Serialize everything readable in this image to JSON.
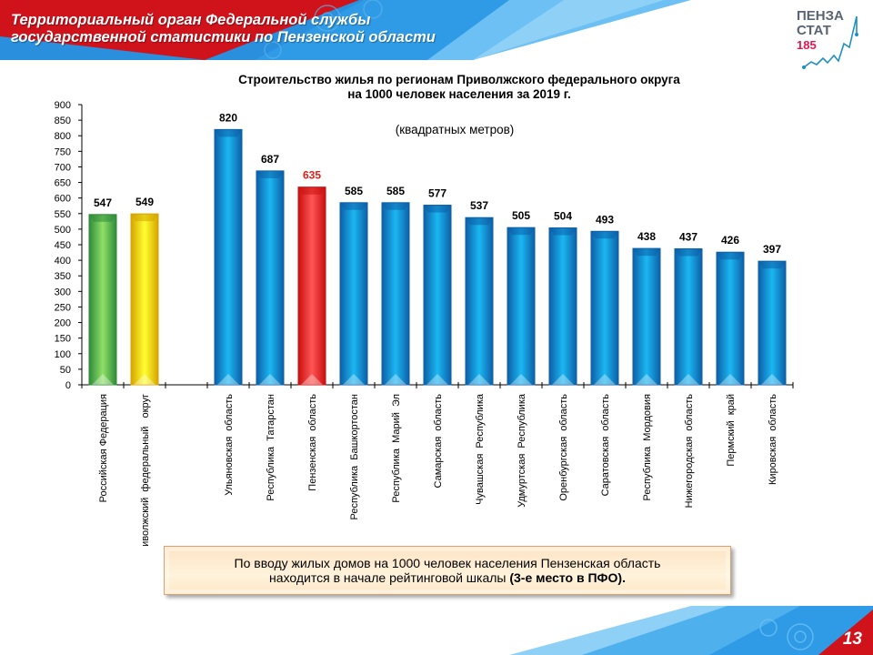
{
  "header": {
    "title_line1": "Территориальный орган Федеральной службы",
    "title_line2": "государственной  статистики по Пензенской области",
    "colors": {
      "red": "#d0121b",
      "blue": "#2f9be6",
      "light_blue": "#5bb5f0"
    }
  },
  "logo": {
    "line1": "ПЕНЗА",
    "line2": "СТАТ",
    "number": "185",
    "colors": {
      "text": "#5a6470",
      "number": "#e0174e",
      "line": "#1f8fbf"
    }
  },
  "chart_data": {
    "type": "bar",
    "title_line1": "Строительство жилья по регионам Приволжского федерального округа",
    "title_line2": "на 1000 человек населения за 2019 г.",
    "subtitle": "(квадратных метров)",
    "xlabel": "",
    "ylabel": "",
    "ylim": [
      0,
      900
    ],
    "yticks": [
      0,
      50,
      100,
      150,
      200,
      250,
      300,
      350,
      400,
      450,
      500,
      550,
      600,
      650,
      700,
      750,
      800,
      850,
      900
    ],
    "grid": false,
    "categories": [
      "Российская Федерация",
      "Приволжский  федеральный   округ",
      "",
      "Ульяновская  область",
      "Республика  Татарстан",
      "Пензенская  область",
      "Республика  Башкортостан",
      "Республика  Марий  Эл",
      "Самарская  область",
      "Чувашская  Республика",
      "Удмуртская  Республика",
      "Оренбургская  область",
      "Саратовская  область",
      "Республика  Мордовия",
      "Нижегородская  область",
      "Пермский  край",
      "Кировская  область"
    ],
    "values": [
      547,
      549,
      null,
      820,
      687,
      635,
      585,
      585,
      577,
      537,
      505,
      504,
      493,
      438,
      437,
      426,
      397
    ],
    "bar_colors": [
      "green",
      "yellow",
      "",
      "blue",
      "blue",
      "red",
      "blue",
      "blue",
      "blue",
      "blue",
      "blue",
      "blue",
      "blue",
      "blue",
      "blue",
      "blue",
      "blue"
    ],
    "highlight_label_color": "#e0201b",
    "palette": {
      "green": [
        "#2e8b3a",
        "#8fe067",
        "#2e8b3a"
      ],
      "yellow": [
        "#d6a400",
        "#ffff30",
        "#d6a400"
      ],
      "blue": [
        "#0d5fa8",
        "#1ab8f2",
        "#0d5fa8"
      ],
      "red": [
        "#c8100f",
        "#ff5555",
        "#c8100f"
      ]
    }
  },
  "note": {
    "line1": "По вводу жилых  домов на  1000 человек населения  Пензенская  область",
    "line2_normal": "находится  в начале  рейтинговой  шкалы ",
    "line2_bold": "(3-е место в ПФО)."
  },
  "footer": {
    "page_number": "13"
  }
}
